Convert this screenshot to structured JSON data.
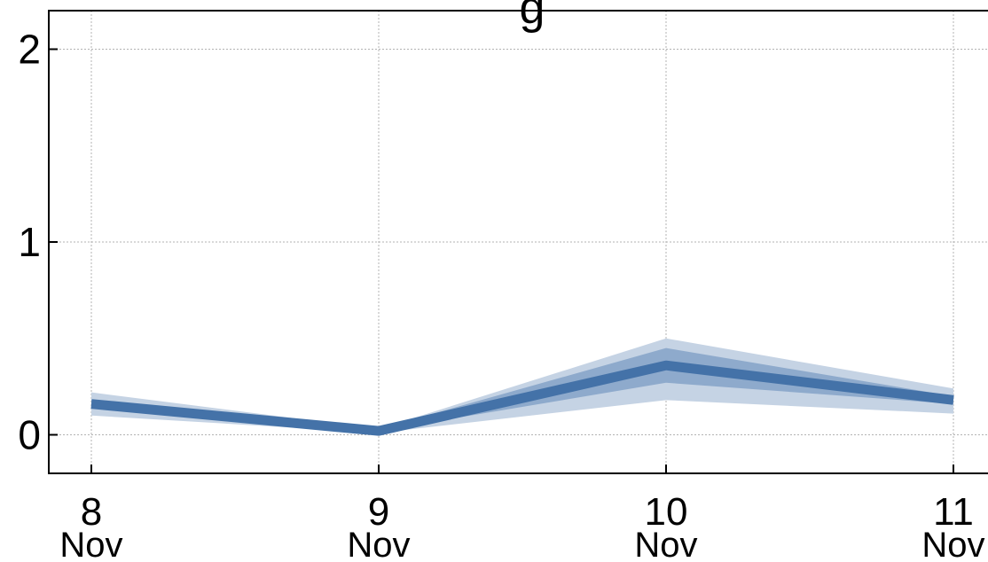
{
  "chart_data": {
    "type": "line",
    "title": "",
    "title_visible_fragment": "g",
    "xlabel": "",
    "ylabel": "",
    "x": [
      "2023-11-08",
      "2023-11-09",
      "2023-11-10",
      "2023-11-11"
    ],
    "x_tick_labels": [
      {
        "day": "8",
        "month": "Nov"
      },
      {
        "day": "9",
        "month": "Nov"
      },
      {
        "day": "10",
        "month": "Nov"
      },
      {
        "day": "11",
        "month": "Nov"
      }
    ],
    "y_tick_labels": [
      "0",
      "1",
      "2"
    ],
    "y_ticks": [
      0,
      1,
      2
    ],
    "ylim": [
      -0.2,
      2.2
    ],
    "grid": true,
    "series": [
      {
        "values": [
          0.16,
          0.02,
          0.36,
          0.18
        ],
        "inner_band": {
          "lower": [
            0.14,
            0.02,
            0.27,
            0.16
          ],
          "upper": [
            0.18,
            0.03,
            0.45,
            0.2
          ]
        },
        "outer_band": {
          "lower": [
            0.1,
            0.01,
            0.18,
            0.11
          ],
          "upper": [
            0.22,
            0.03,
            0.5,
            0.24
          ]
        }
      }
    ],
    "colors": {
      "line": "#4472a8",
      "inner_band": "#7b9cc4",
      "outer_band": "#c5d3e4",
      "grid": "#b3b3b3",
      "axis": "#000000"
    }
  }
}
